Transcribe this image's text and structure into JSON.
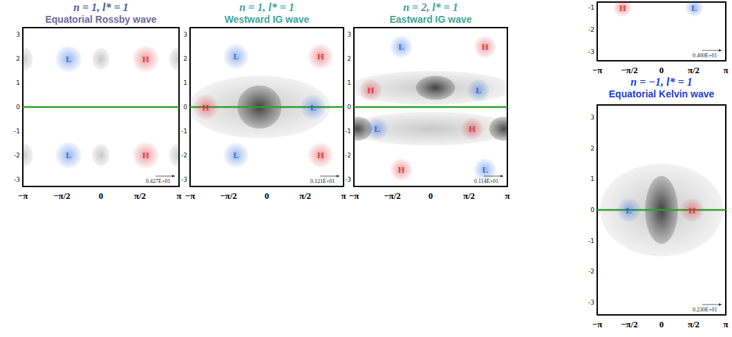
{
  "chart_data": [
    {
      "type": "scatter",
      "title": "n = 1, l* = 1",
      "subtitle": "Equatorial Rossby wave",
      "xlim": [
        -3.14159,
        3.14159
      ],
      "xticks": [
        {
          "value": -3.14159,
          "label": "−π"
        },
        {
          "value": -1.5708,
          "label": "−π/2"
        },
        0,
        {
          "value": 1.5708,
          "label": "π/2"
        },
        {
          "value": 3.14159,
          "label": "π"
        }
      ],
      "ylim": [
        -3.3,
        3.3
      ],
      "yticks": [
        -3,
        -2,
        -1,
        0,
        1,
        2,
        3
      ],
      "grid": false,
      "series": [
        {
          "name": "H",
          "color": "#d9262c",
          "values": [
            [
              1.8,
              2.0
            ],
            [
              1.8,
              -2.0
            ]
          ]
        },
        {
          "name": "L",
          "color": "#1f5fd6",
          "values": [
            [
              -1.3,
              2.0
            ],
            [
              -1.3,
              -2.0
            ]
          ]
        }
      ],
      "shading": [
        {
          "x": 0,
          "y": 2.0,
          "rx": 0.35,
          "ry": 0.45,
          "level": 1
        },
        {
          "x": 0,
          "y": -2.0,
          "rx": 0.35,
          "ry": 0.45,
          "level": 1
        },
        {
          "x": -3.14,
          "y": 2.0,
          "rx": 0.4,
          "ry": 0.5,
          "level": 1
        },
        {
          "x": 3.14,
          "y": 2.0,
          "rx": 0.4,
          "ry": 0.5,
          "level": 1
        },
        {
          "x": -3.14,
          "y": -2.0,
          "rx": 0.4,
          "ry": 0.5,
          "level": 1
        },
        {
          "x": 3.14,
          "y": -2.0,
          "rx": 0.4,
          "ry": 0.5,
          "level": 1
        }
      ],
      "equator_line": {
        "y": 0,
        "color": "#2ca02c"
      },
      "annotation": "0.427E+01"
    },
    {
      "type": "scatter",
      "title": "n = 1, l* = 1",
      "subtitle": "Westward IG wave",
      "xlim": [
        -3.14159,
        3.14159
      ],
      "xticks": [
        {
          "value": -3.14159,
          "label": "−π"
        },
        {
          "value": -1.5708,
          "label": "−π/2"
        },
        0,
        {
          "value": 1.5708,
          "label": "π/2"
        },
        {
          "value": 3.14159,
          "label": "π"
        }
      ],
      "ylim": [
        -3.3,
        3.3
      ],
      "yticks": [
        -3,
        -2,
        -1,
        0,
        1,
        2,
        3
      ],
      "grid": false,
      "series": [
        {
          "name": "H",
          "color": "#d9262c",
          "values": [
            [
              2.2,
              2.1
            ],
            [
              -2.5,
              0
            ],
            [
              2.2,
              -2.0
            ]
          ]
        },
        {
          "name": "L",
          "color": "#1f5fd6",
          "values": [
            [
              -1.26,
              2.1
            ],
            [
              1.9,
              0
            ],
            [
              -1.26,
              -2.0
            ]
          ]
        }
      ],
      "shading": [
        {
          "x": -0.3,
          "y": 0,
          "rx": 2.9,
          "ry": 1.3,
          "level": 1
        },
        {
          "x": -0.3,
          "y": 0,
          "rx": 0.9,
          "ry": 0.9,
          "level": 2
        }
      ],
      "equator_line": {
        "y": 0,
        "color": "#2ca02c"
      },
      "annotation": "0.121E+01"
    },
    {
      "type": "scatter",
      "title": "n = 2, l* = 1",
      "subtitle": "Eastward IG wave",
      "xlim": [
        -3.14159,
        3.14159
      ],
      "xticks": [
        {
          "value": -3.14159,
          "label": "−π"
        },
        {
          "value": -1.5708,
          "label": "−π/2"
        },
        0,
        {
          "value": 1.5708,
          "label": "π/2"
        },
        {
          "value": 3.14159,
          "label": "π"
        }
      ],
      "ylim": [
        -3.3,
        3.3
      ],
      "yticks": [
        -3,
        -2,
        -1,
        0,
        1,
        2,
        3
      ],
      "grid": false,
      "series": [
        {
          "name": "H",
          "color": "#d9262c",
          "values": [
            [
              2.23,
              2.5
            ],
            [
              -2.45,
              0.7
            ],
            [
              1.7,
              -0.9
            ],
            [
              -1.2,
              -2.6
            ]
          ]
        },
        {
          "name": "L",
          "color": "#1f5fd6",
          "values": [
            [
              -1.2,
              2.5
            ],
            [
              1.96,
              0.7
            ],
            [
              -2.2,
              -0.9
            ],
            [
              2.23,
              -2.6
            ]
          ]
        }
      ],
      "shading": [
        {
          "x": 0,
          "y": 0.8,
          "rx": 3.4,
          "ry": 0.7,
          "level": 1
        },
        {
          "x": 0,
          "y": -0.9,
          "rx": 3.4,
          "ry": 0.7,
          "level": 1
        },
        {
          "x": 0.2,
          "y": 0.8,
          "rx": 0.8,
          "ry": 0.5,
          "level": 2
        },
        {
          "x": -3.0,
          "y": -0.9,
          "rx": 0.6,
          "ry": 0.5,
          "level": 2
        },
        {
          "x": 3.0,
          "y": -0.9,
          "rx": 0.6,
          "ry": 0.5,
          "level": 2
        }
      ],
      "equator_line": {
        "y": 0,
        "color": "#2ca02c"
      },
      "annotation": "0.114E+01"
    },
    {
      "type": "scatter",
      "xlim": [
        -3.14159,
        3.14159
      ],
      "xticks": [
        {
          "value": -3.14159,
          "label": "−π"
        },
        {
          "value": -1.5708,
          "label": "−π/2"
        },
        0,
        {
          "value": 1.5708,
          "label": "π/2"
        },
        {
          "value": 3.14159,
          "label": "π"
        }
      ],
      "ylim": [
        -3.4,
        -0.75
      ],
      "yticks": [
        -3,
        -2,
        -1
      ],
      "grid": false,
      "series": [
        {
          "name": "H",
          "color": "#d9262c",
          "values": [
            [
              -1.9,
              -1.0
            ]
          ]
        },
        {
          "name": "L",
          "color": "#1f5fd6",
          "values": [
            [
              1.6,
              -1.0
            ]
          ]
        }
      ],
      "annotation": "0.400E+01"
    },
    {
      "type": "scatter",
      "title": "n = −1, l* = 1",
      "subtitle": "Equatorial Kelvin wave",
      "xlim": [
        -3.14159,
        3.14159
      ],
      "xticks": [
        {
          "value": -3.14159,
          "label": "−π"
        },
        {
          "value": -1.5708,
          "label": "−π/2"
        },
        0,
        {
          "value": 1.5708,
          "label": "π/2"
        },
        {
          "value": 3.14159,
          "label": "π"
        }
      ],
      "ylim": [
        -3.4,
        3.4
      ],
      "yticks": [
        -3,
        -2,
        -1,
        0,
        1,
        2,
        3
      ],
      "grid": false,
      "series": [
        {
          "name": "H",
          "color": "#d9262c",
          "values": [
            [
              1.5,
              0
            ]
          ]
        },
        {
          "name": "L",
          "color": "#1f5fd6",
          "values": [
            [
              -1.6,
              0
            ]
          ]
        }
      ],
      "shading": [
        {
          "x": 0,
          "y": 0,
          "rx": 3.0,
          "ry": 1.5,
          "level": 1
        },
        {
          "x": 0,
          "y": 0,
          "rx": 0.8,
          "ry": 1.1,
          "level": 2
        }
      ],
      "equator_line": {
        "y": 0,
        "color": "#2ca02c"
      },
      "annotation": "0.230E+01"
    }
  ]
}
